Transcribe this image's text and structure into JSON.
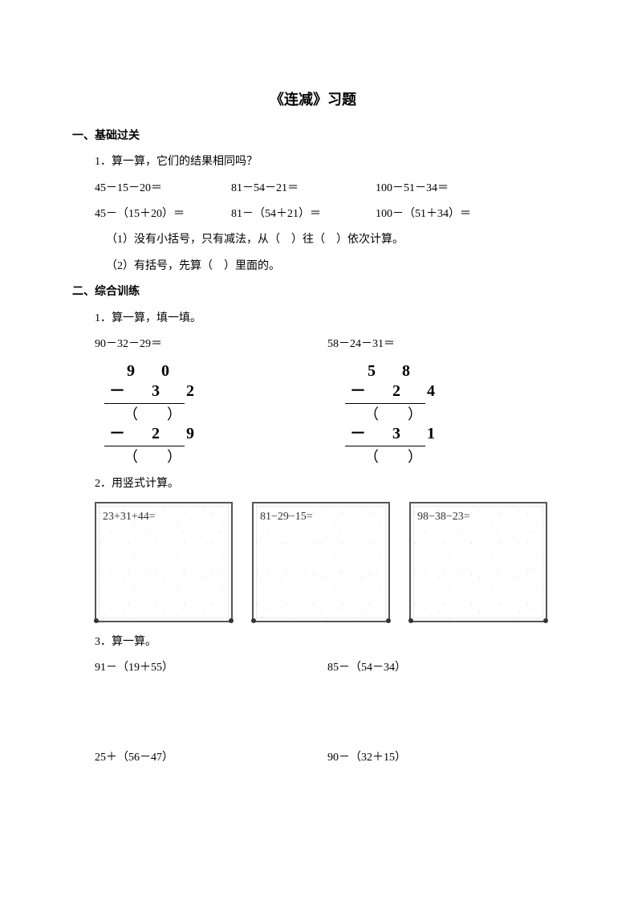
{
  "title": "《连减》习题",
  "section1": {
    "header": "一、基础过关",
    "q1": {
      "prompt": "1．算一算，它们的结果相同吗？",
      "rowA": {
        "c1": "45－15－20＝",
        "c2": "81－54－21＝",
        "c3": "100－51－34＝"
      },
      "rowB": {
        "c1": "45－（15＋20）＝",
        "c2": "81－（54＋21）＝",
        "c3": "100－（51＋34）＝"
      },
      "rule1": "（1）没有小括号，只有减法，从（　）往（　）依次计算。",
      "rule2": "（2）有括号，先算（　）里面的。"
    }
  },
  "section2": {
    "header": "二、综合训练",
    "q1": {
      "prompt": "1．算一算，填一填。",
      "left": {
        "expr": "90－32－29＝",
        "r1": "9 0",
        "r2": "－ 3 2",
        "r3": "（　　）",
        "r4": "－ 2 9",
        "r5": "（　　）"
      },
      "right": {
        "expr": "58－24－31＝",
        "r1": "5 8",
        "r2": "－ 2 4",
        "r3": "（　　）",
        "r4": "－ 3 1",
        "r5": "（　　）"
      }
    },
    "q2": {
      "prompt": "2．用竖式计算。",
      "box1": "23+31+44=",
      "box2": "81−29−15=",
      "box3": "98−38−23="
    },
    "q3": {
      "prompt": "3．算一算。",
      "rowA": {
        "c1": "91－（19＋55）",
        "c2": "85－（54－34）"
      },
      "rowB": {
        "c1": "25＋（56－47）",
        "c2": "90－（32＋15）"
      }
    }
  },
  "colors": {
    "text": "#000000",
    "bg": "#ffffff",
    "border": "#555555"
  },
  "fontsize": {
    "title": 18,
    "body": 14,
    "vertical": 20
  }
}
